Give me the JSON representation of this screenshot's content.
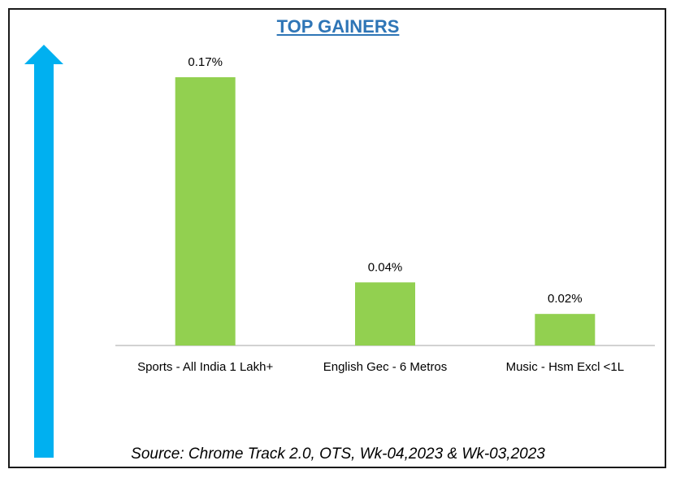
{
  "colors": {
    "bar": "#92d050",
    "arrow": "#00b0f0",
    "title": "#2e75b6",
    "axis": "#a6a6a6"
  },
  "chart_data": {
    "type": "bar",
    "title": "TOP GAINERS",
    "categories": [
      "Sports - All India 1 Lakh+",
      "English Gec - 6 Metros",
      "Music - Hsm Excl <1L"
    ],
    "values": [
      0.17,
      0.04,
      0.02
    ],
    "data_labels": [
      "0.17%",
      "0.04%",
      "0.02%"
    ],
    "ylim": [
      0,
      0.17
    ],
    "grid": false,
    "legend": "none",
    "decoration": "upward-arrow-left"
  },
  "footer": {
    "source": "Source: Chrome Track 2.0, OTS, Wk-04,2023 & Wk-03,2023"
  }
}
